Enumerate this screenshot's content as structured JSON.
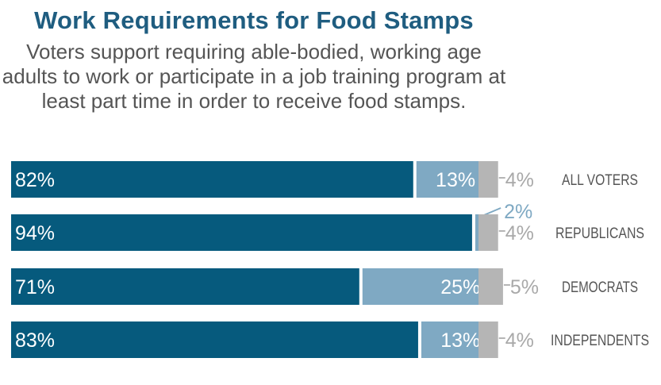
{
  "chart_data": {
    "type": "bar",
    "stacked": true,
    "orientation": "horizontal",
    "title": "Work Requirements for Food Stamps",
    "subtitle": "Voters support requiring able-bodied, working age adults to work or participate in a job training program at least part time in order to receive food stamps.",
    "categories": [
      "ALL VOTERS",
      "REPUBLICANS",
      "DEMOCRATS",
      "INDEPENDENTS"
    ],
    "series": [
      {
        "values": [
          82,
          94,
          71,
          83
        ],
        "labels": [
          "82%",
          "94%",
          "71%",
          "83%"
        ],
        "color": "#065a7d"
      },
      {
        "values": [
          13,
          2,
          25,
          13
        ],
        "labels": [
          "13%",
          "2%",
          "25%",
          "13%"
        ],
        "color": "#7fa9c3"
      },
      {
        "values": [
          4,
          4,
          5,
          4
        ],
        "labels": [
          "4%",
          "4%",
          "5%",
          "4%"
        ],
        "color": "#b5b5b5"
      }
    ],
    "xlim": [
      0,
      100
    ],
    "grid": false,
    "legend": "none"
  }
}
